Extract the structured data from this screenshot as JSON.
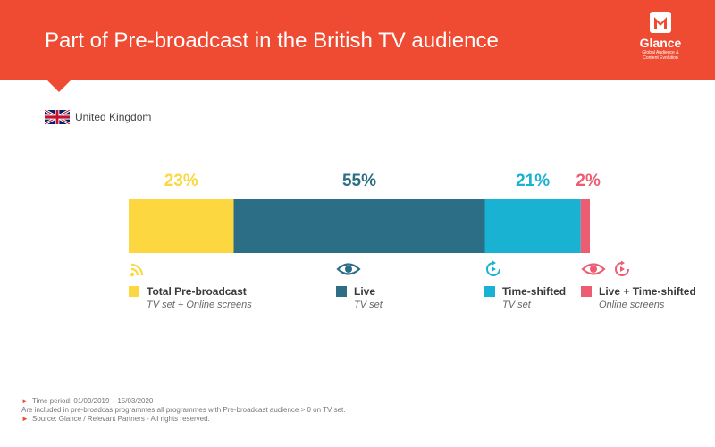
{
  "header": {
    "title": "Part of Pre-broadcast in the British TV audience"
  },
  "logo": {
    "name": "Glance",
    "tagline_1": "Global Audience &",
    "tagline_2": "Content Evolution"
  },
  "country": {
    "label": "United Kingdom",
    "icon": "uk-flag-icon"
  },
  "chart_data": {
    "type": "bar",
    "orientation": "horizontal-stacked-100",
    "unit": "%",
    "segments": [
      {
        "label": "23%",
        "value": 23,
        "color": "#fcd73f"
      },
      {
        "label": "55%",
        "value": 55,
        "color": "#2c6e86"
      },
      {
        "label": "21%",
        "value": 21,
        "color": "#19b2d3"
      },
      {
        "label": "2%",
        "value": 2,
        "color": "#ec5c72"
      }
    ]
  },
  "legend": [
    {
      "name": "Total Pre-broadcast",
      "sub": "TV set + Online screens",
      "color": "#fcd73f",
      "icons": [
        "broadcast-signal-icon"
      ]
    },
    {
      "name": "Live",
      "sub": "TV set",
      "color": "#2c6e86",
      "icons": [
        "eye-icon"
      ]
    },
    {
      "name": "Time-shifted",
      "sub": "TV set",
      "color": "#19b2d3",
      "icons": [
        "replay-icon"
      ]
    },
    {
      "name": "Live + Time-shifted",
      "sub": "Online screens",
      "color": "#ec5c72",
      "icons": [
        "eye-icon",
        "replay-icon"
      ]
    }
  ],
  "footnotes": {
    "line1": "Time period: 01/09/2019 – 15/03/2020",
    "line2": "Are included in pre-broadcas programmes all programmes with Pre-broadcast audience > 0 on TV set.",
    "line3": "Source: Glance / Relevant Partners - All rights reserved."
  },
  "colors": {
    "brand": "#ef4b33"
  }
}
